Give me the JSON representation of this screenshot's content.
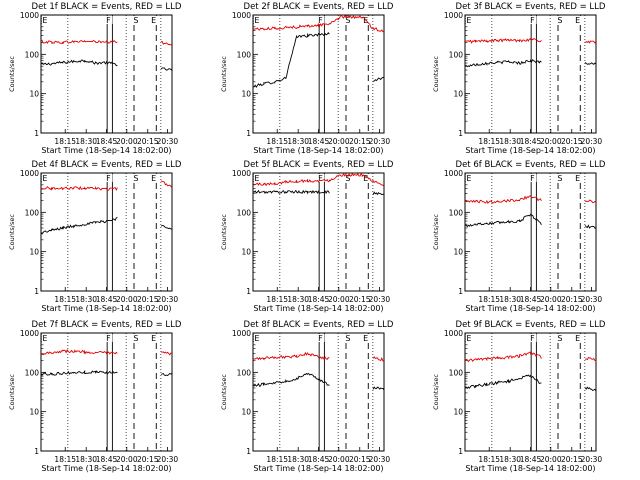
{
  "colors": {
    "events": "#000000",
    "lld": "#e00000",
    "background": "#ffffff"
  },
  "chart_data": [
    {
      "type": "line",
      "scale": "log-y",
      "title": "Det 1f BLACK = Events, RED = LLD",
      "xlabel": "Start Time (18-Sep-14 18:02:00)",
      "ylabel": "Counts/sec",
      "ylim": [
        1,
        1000
      ],
      "x_ticks": [
        "18:15",
        "18:30",
        "18:45",
        "20:00",
        "20:15",
        "20:30"
      ],
      "y_ticks": [
        "1",
        "10",
        "100",
        "1000"
      ],
      "segment_labels": [
        "E",
        "F",
        "S",
        "E"
      ],
      "series": [
        {
          "name": "BLACK = Events",
          "values": [
            55,
            58,
            62,
            66,
            70,
            60,
            62,
            55,
            null,
            null,
            null,
            43,
            40
          ]
        },
        {
          "name": "RED = LLD",
          "values": [
            210,
            205,
            200,
            210,
            215,
            210,
            200,
            210,
            null,
            null,
            null,
            200,
            185
          ]
        }
      ]
    },
    {
      "type": "line",
      "scale": "log-y",
      "title": "Det 2f BLACK = Events, RED = LLD",
      "xlabel": "Start Time (18-Sep-14 18:02:00)",
      "ylabel": "Counts/sec",
      "ylim": [
        1,
        1000
      ],
      "x_ticks": [
        "18:15",
        "18:30",
        "18:45",
        "20:00",
        "20:15",
        "20:30"
      ],
      "y_ticks": [
        "1",
        "10",
        "100",
        "1000"
      ],
      "segment_labels": [
        "E",
        "F",
        "S",
        "E"
      ],
      "series": [
        {
          "name": "BLACK = Events",
          "values": [
            15,
            18,
            20,
            25,
            280,
            300,
            320,
            330,
            null,
            null,
            null,
            22,
            25
          ]
        },
        {
          "name": "RED = LLD",
          "values": [
            450,
            440,
            460,
            480,
            500,
            520,
            550,
            600,
            900,
            900,
            900,
            450,
            400
          ]
        }
      ]
    },
    {
      "type": "line",
      "scale": "log-y",
      "title": "Det 3f BLACK = Events, RED = LLD",
      "xlabel": "Start Time (18-Sep-14 18:02:00)",
      "ylabel": "Counts/sec",
      "ylim": [
        1,
        1000
      ],
      "x_ticks": [
        "18:15",
        "18:30",
        "18:45",
        "20:00",
        "20:15",
        "20:30"
      ],
      "y_ticks": [
        "1",
        "10",
        "100",
        "1000"
      ],
      "segment_labels": [
        "E",
        "F",
        "S",
        "E"
      ],
      "series": [
        {
          "name": "BLACK = Events",
          "values": [
            50,
            55,
            60,
            62,
            65,
            60,
            70,
            62,
            null,
            null,
            null,
            60,
            55
          ]
        },
        {
          "name": "RED = LLD",
          "values": [
            210,
            215,
            220,
            225,
            230,
            225,
            240,
            220,
            null,
            null,
            null,
            210,
            200
          ]
        }
      ]
    },
    {
      "type": "line",
      "scale": "log-y",
      "title": "Det 4f BLACK = Events, RED = LLD",
      "xlabel": "Start Time (18-Sep-14 18:02:00)",
      "ylabel": "Counts/sec",
      "ylim": [
        1,
        1000
      ],
      "x_ticks": [
        "18:15",
        "18:30",
        "18:45",
        "20:00",
        "20:15",
        "20:30"
      ],
      "y_ticks": [
        "1",
        "10",
        "100",
        "1000"
      ],
      "segment_labels": [
        "E",
        "F",
        "S",
        "E"
      ],
      "series": [
        {
          "name": "BLACK = Events",
          "values": [
            30,
            35,
            40,
            45,
            50,
            55,
            60,
            70,
            null,
            null,
            null,
            45,
            40
          ]
        },
        {
          "name": "RED = LLD",
          "values": [
            420,
            410,
            400,
            420,
            410,
            400,
            390,
            400,
            null,
            null,
            null,
            600,
            450
          ]
        }
      ]
    },
    {
      "type": "line",
      "scale": "log-y",
      "title": "Det 5f BLACK = Events, RED = LLD",
      "xlabel": "Start Time (18-Sep-14 18:02:00)",
      "ylabel": "Counts/sec",
      "ylim": [
        1,
        1000
      ],
      "x_ticks": [
        "18:15",
        "18:30",
        "18:45",
        "20:00",
        "20:15",
        "20:30"
      ],
      "y_ticks": [
        "1",
        "10",
        "100",
        "1000"
      ],
      "segment_labels": [
        "E",
        "F",
        "S",
        "E"
      ],
      "series": [
        {
          "name": "BLACK = Events",
          "values": [
            330,
            330,
            330,
            330,
            330,
            330,
            330,
            330,
            null,
            null,
            null,
            300,
            300
          ]
        },
        {
          "name": "RED = LLD",
          "values": [
            520,
            520,
            530,
            600,
            620,
            640,
            620,
            660,
            900,
            900,
            900,
            600,
            500
          ]
        }
      ]
    },
    {
      "type": "line",
      "scale": "log-y",
      "title": "Det 6f BLACK = Events, RED = LLD",
      "xlabel": "Start Time (18-Sep-14 18:02:00)",
      "ylabel": "Counts/sec",
      "ylim": [
        1,
        1000
      ],
      "x_ticks": [
        "18:15",
        "18:30",
        "18:45",
        "20:00",
        "20:15",
        "20:30"
      ],
      "y_ticks": [
        "1",
        "10",
        "100",
        "1000"
      ],
      "segment_labels": [
        "E",
        "F",
        "S",
        "E"
      ],
      "series": [
        {
          "name": "BLACK = Events",
          "values": [
            45,
            50,
            52,
            55,
            58,
            60,
            90,
            50,
            null,
            null,
            null,
            45,
            40
          ]
        },
        {
          "name": "RED = LLD",
          "values": [
            180,
            190,
            185,
            190,
            200,
            210,
            260,
            200,
            null,
            null,
            null,
            200,
            180
          ]
        }
      ]
    },
    {
      "type": "line",
      "scale": "log-y",
      "title": "Det 7f BLACK = Events, RED = LLD",
      "xlabel": "Start Time (18-Sep-14 18:02:00)",
      "ylabel": "Counts/sec",
      "ylim": [
        1,
        1000
      ],
      "x_ticks": [
        "18:15",
        "18:30",
        "18:45",
        "20:00",
        "20:15",
        "20:30"
      ],
      "y_ticks": [
        "1",
        "10",
        "100",
        "1000"
      ],
      "segment_labels": [
        "E",
        "F",
        "S",
        "E"
      ],
      "series": [
        {
          "name": "BLACK = Events",
          "values": [
            90,
            92,
            95,
            98,
            100,
            102,
            100,
            98,
            null,
            null,
            null,
            90,
            90
          ]
        },
        {
          "name": "RED = LLD",
          "values": [
            300,
            320,
            350,
            340,
            330,
            320,
            310,
            300,
            null,
            null,
            null,
            320,
            290
          ]
        }
      ]
    },
    {
      "type": "line",
      "scale": "log-y",
      "title": "Det 8f BLACK = Events, RED = LLD",
      "xlabel": "Start Time (18-Sep-14 18:02:00)",
      "ylabel": "Counts/sec",
      "ylim": [
        1,
        1000
      ],
      "x_ticks": [
        "18:15",
        "18:30",
        "18:45",
        "20:00",
        "20:15",
        "20:30"
      ],
      "y_ticks": [
        "1",
        "10",
        "100",
        "1000"
      ],
      "segment_labels": [
        "E",
        "F",
        "S",
        "E"
      ],
      "series": [
        {
          "name": "BLACK = Events",
          "values": [
            45,
            50,
            55,
            60,
            70,
            95,
            70,
            45,
            null,
            null,
            null,
            40,
            38
          ]
        },
        {
          "name": "RED = LLD",
          "values": [
            220,
            230,
            240,
            250,
            260,
            300,
            250,
            220,
            null,
            null,
            null,
            230,
            210
          ]
        }
      ]
    },
    {
      "type": "line",
      "scale": "log-y",
      "title": "Det 9f BLACK = Events, RED = LLD",
      "xlabel": "Start Time (18-Sep-14 18:02:00)",
      "ylabel": "Counts/sec",
      "ylim": [
        1,
        1000
      ],
      "x_ticks": [
        "18:15",
        "18:30",
        "18:45",
        "20:00",
        "20:15",
        "20:30"
      ],
      "y_ticks": [
        "1",
        "10",
        "100",
        "1000"
      ],
      "segment_labels": [
        "E",
        "F",
        "S",
        "E"
      ],
      "series": [
        {
          "name": "BLACK = Events",
          "values": [
            40,
            45,
            50,
            55,
            60,
            70,
            85,
            50,
            null,
            null,
            null,
            40,
            35
          ]
        },
        {
          "name": "RED = LLD",
          "values": [
            200,
            210,
            220,
            230,
            240,
            260,
            320,
            240,
            null,
            null,
            null,
            230,
            210
          ]
        }
      ]
    }
  ]
}
